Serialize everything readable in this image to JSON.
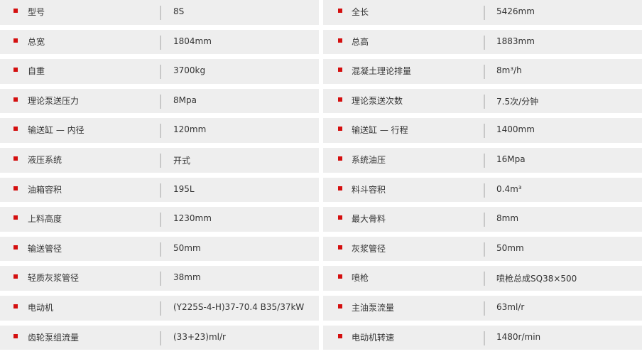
{
  "accent_color": "#d40f0f",
  "rows": [
    {
      "left": {
        "label": "型号",
        "value": "8S"
      },
      "right": {
        "label": "全长",
        "value": "5426mm"
      }
    },
    {
      "left": {
        "label": "总宽",
        "value": "1804mm"
      },
      "right": {
        "label": "总高",
        "value": "1883mm"
      }
    },
    {
      "left": {
        "label": "自重",
        "value": "3700kg"
      },
      "right": {
        "label": "混凝土理论排量",
        "value": "8m³/h"
      }
    },
    {
      "left": {
        "label": "理论泵送压力",
        "value": "8Mpa"
      },
      "right": {
        "label": "理论泵送次数",
        "value": "7.5次/分钟"
      }
    },
    {
      "left": {
        "label": "输送缸 — 内径",
        "value": "120mm"
      },
      "right": {
        "label": "输送缸 — 行程",
        "value": "1400mm"
      }
    },
    {
      "left": {
        "label": "液压系统",
        "value": "开式"
      },
      "right": {
        "label": "系统油压",
        "value": "16Mpa"
      }
    },
    {
      "left": {
        "label": "油箱容积",
        "value": "195L"
      },
      "right": {
        "label": "料斗容积",
        "value": "0.4m³"
      }
    },
    {
      "left": {
        "label": "上料高度",
        "value": "1230mm"
      },
      "right": {
        "label": "最大骨料",
        "value": "8mm"
      }
    },
    {
      "left": {
        "label": "输送管径",
        "value": "50mm"
      },
      "right": {
        "label": "灰浆管径",
        "value": "50mm"
      }
    },
    {
      "left": {
        "label": "轻质灰浆管径",
        "value": "38mm"
      },
      "right": {
        "label": "喷枪",
        "value": "喷枪总成SQ38×500"
      }
    },
    {
      "left": {
        "label": "电动机",
        "value": "(Y225S-4-H)37-70.4 B35/37kW"
      },
      "right": {
        "label": "主油泵流量",
        "value": "63ml/r"
      }
    },
    {
      "left": {
        "label": "齿轮泵组流量",
        "value": "(33+23)ml/r"
      },
      "right": {
        "label": "电动机转速",
        "value": "1480r/min"
      }
    }
  ]
}
